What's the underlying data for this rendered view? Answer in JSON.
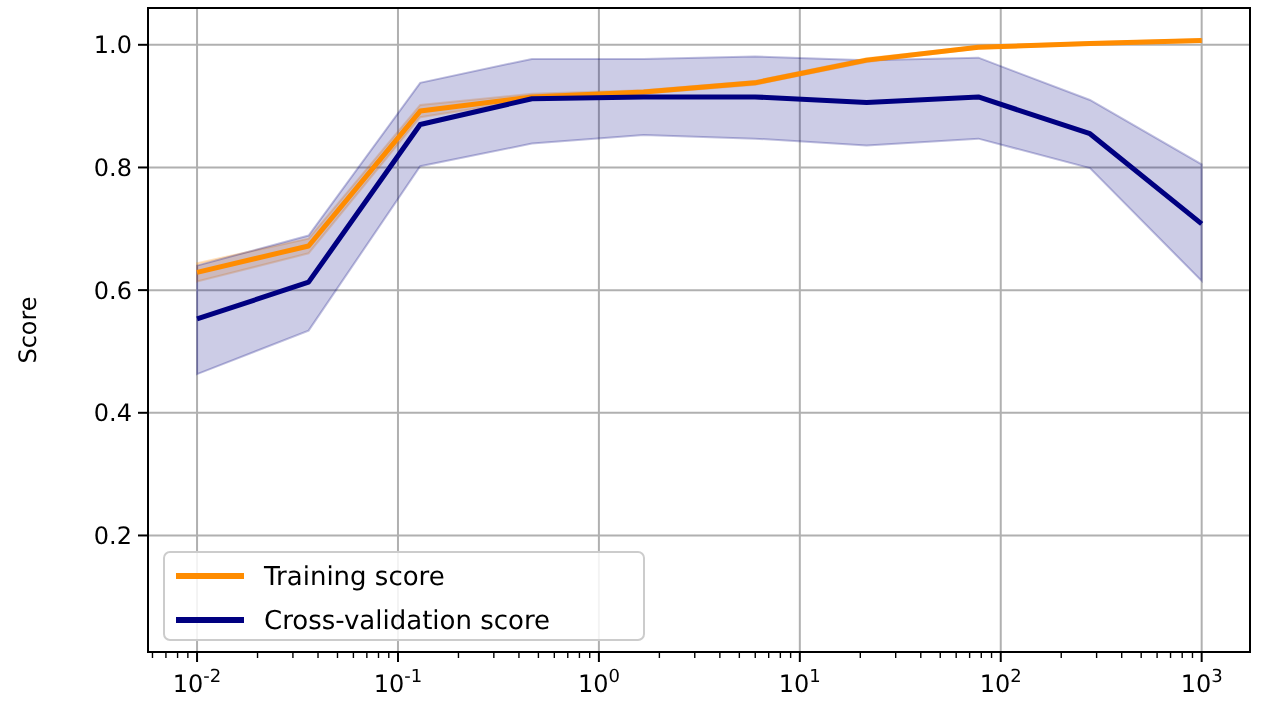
{
  "chart_data": {
    "type": "line",
    "ylabel": "Score",
    "log": "x",
    "x": [
      0.01,
      0.0359,
      0.129,
      0.464,
      1.67,
      5.99,
      21.5,
      77.4,
      278,
      1000
    ],
    "series": [
      {
        "name": "Training score",
        "color": "#ff8c00",
        "values": [
          0.629,
          0.672,
          0.892,
          0.915,
          0.923,
          0.938,
          0.975,
          0.996,
          1.002,
          1.007
        ],
        "lower": [
          0.614,
          0.66,
          0.882,
          0.91,
          0.92,
          0.935,
          0.972,
          0.994,
          1.0,
          1.005
        ],
        "upper": [
          0.644,
          0.684,
          0.902,
          0.92,
          0.926,
          0.941,
          0.978,
          0.998,
          1.004,
          1.009
        ]
      },
      {
        "name": "Cross-validation score",
        "color": "#000080",
        "values": [
          0.553,
          0.613,
          0.87,
          0.912,
          0.915,
          0.915,
          0.906,
          0.915,
          0.855,
          0.708
        ],
        "lower": [
          0.463,
          0.534,
          0.802,
          0.839,
          0.853,
          0.847,
          0.836,
          0.847,
          0.799,
          0.615
        ],
        "upper": [
          0.64,
          0.689,
          0.938,
          0.977,
          0.977,
          0.981,
          0.975,
          0.979,
          0.91,
          0.805
        ]
      }
    ],
    "xlim": [
      0.0057,
      1740
    ],
    "ylim": [
      0.01,
      1.06
    ],
    "xticks": [
      {
        "value": 0.01,
        "label": "10$^{-2}$"
      },
      {
        "value": 0.1,
        "label": "10$^{-1}$"
      },
      {
        "value": 1,
        "label": "10$^{0}$"
      },
      {
        "value": 10,
        "label": "10$^{1}$"
      },
      {
        "value": 100,
        "label": "10$^{2}$"
      },
      {
        "value": 1000,
        "label": "10$^{3}$"
      },
      {
        "value": 0.006,
        "label": null
      },
      {
        "value": 0.007,
        "label": null
      },
      {
        "value": 0.008,
        "label": null
      },
      {
        "value": 0.009,
        "label": null
      },
      {
        "value": 0.02,
        "label": null
      },
      {
        "value": 0.03,
        "label": null
      },
      {
        "value": 0.04,
        "label": null
      },
      {
        "value": 0.05,
        "label": null
      },
      {
        "value": 0.06,
        "label": null
      },
      {
        "value": 0.07,
        "label": null
      },
      {
        "value": 0.08,
        "label": null
      },
      {
        "value": 0.09,
        "label": null
      },
      {
        "value": 0.2,
        "label": null
      },
      {
        "value": 0.3,
        "label": null
      },
      {
        "value": 0.4,
        "label": null
      },
      {
        "value": 0.5,
        "label": null
      },
      {
        "value": 0.6,
        "label": null
      },
      {
        "value": 0.7,
        "label": null
      },
      {
        "value": 0.8,
        "label": null
      },
      {
        "value": 0.9,
        "label": null
      },
      {
        "value": 2,
        "label": null
      },
      {
        "value": 3,
        "label": null
      },
      {
        "value": 4,
        "label": null
      },
      {
        "value": 5,
        "label": null
      },
      {
        "value": 6,
        "label": null
      },
      {
        "value": 7,
        "label": null
      },
      {
        "value": 8,
        "label": null
      },
      {
        "value": 9,
        "label": null
      },
      {
        "value": 20,
        "label": null
      },
      {
        "value": 30,
        "label": null
      },
      {
        "value": 40,
        "label": null
      },
      {
        "value": 50,
        "label": null
      },
      {
        "value": 60,
        "label": null
      },
      {
        "value": 70,
        "label": null
      },
      {
        "value": 80,
        "label": null
      },
      {
        "value": 90,
        "label": null
      },
      {
        "value": 200,
        "label": null
      },
      {
        "value": 300,
        "label": null
      },
      {
        "value": 400,
        "label": null
      },
      {
        "value": 500,
        "label": null
      },
      {
        "value": 600,
        "label": null
      },
      {
        "value": 700,
        "label": null
      },
      {
        "value": 800,
        "label": null
      },
      {
        "value": 900,
        "label": null
      }
    ],
    "yticks": [
      {
        "value": 0.2,
        "label": "0.2"
      },
      {
        "value": 0.4,
        "label": "0.4"
      },
      {
        "value": 0.6,
        "label": "0.6"
      },
      {
        "value": 0.8,
        "label": "0.8"
      },
      {
        "value": 1.0,
        "label": "1.0"
      }
    ],
    "grid": true,
    "legend": "bottom left",
    "line_style": "solid",
    "marker": "none"
  }
}
